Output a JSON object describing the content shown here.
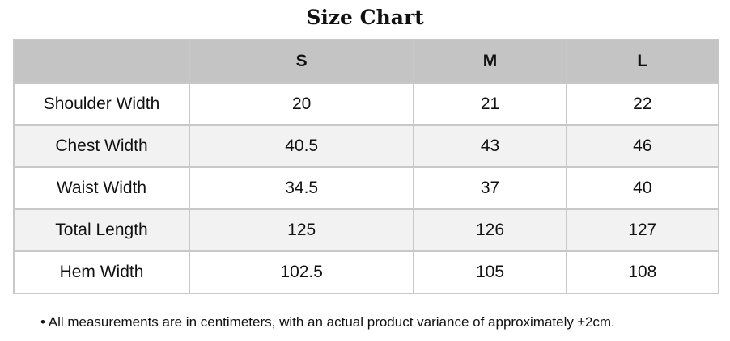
{
  "title": "Size Chart",
  "table": {
    "header": [
      "",
      "S",
      "M",
      "L"
    ],
    "rows": [
      [
        "Shoulder Width",
        "20",
        "21",
        "22"
      ],
      [
        "Chest Width",
        "40.5",
        "43",
        "46"
      ],
      [
        "Waist Width",
        "34.5",
        "37",
        "40"
      ],
      [
        "Total Length",
        "125",
        "126",
        "127"
      ],
      [
        "Hem Width",
        "102.5",
        "105",
        "108"
      ]
    ]
  },
  "note": "• All measurements are in centimeters, with an actual product variance of approximately ±2cm."
}
